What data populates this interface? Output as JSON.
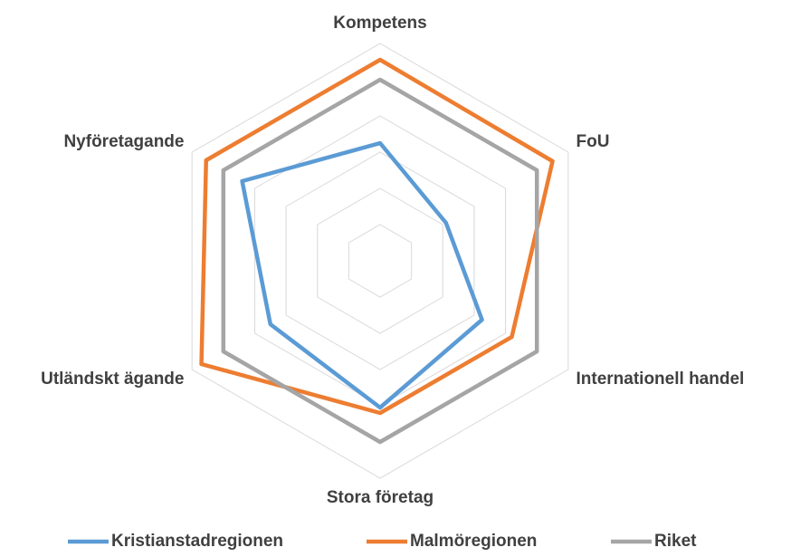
{
  "chart_data": {
    "type": "radar",
    "categories": [
      "Kompetens",
      "FoU",
      "Internationell handel",
      "Stora företag",
      "Utländskt ägande",
      "Nyföretagande"
    ],
    "series": [
      {
        "name": "Kristianstadregionen",
        "color": "#5b9bd5",
        "values": [
          65,
          42,
          65,
          81,
          70,
          88
        ]
      },
      {
        "name": "Malmöregionen",
        "color": "#ed7d31",
        "values": [
          111,
          110,
          84,
          84,
          114,
          111
        ]
      },
      {
        "name": "Riket",
        "color": "#a5a5a5",
        "values": [
          100,
          100,
          100,
          100,
          100,
          100
        ]
      }
    ],
    "ylim": [
      0,
      120
    ],
    "yticks": [
      20,
      40,
      60,
      80,
      100,
      120
    ],
    "grid": true,
    "legend": "bottom"
  }
}
